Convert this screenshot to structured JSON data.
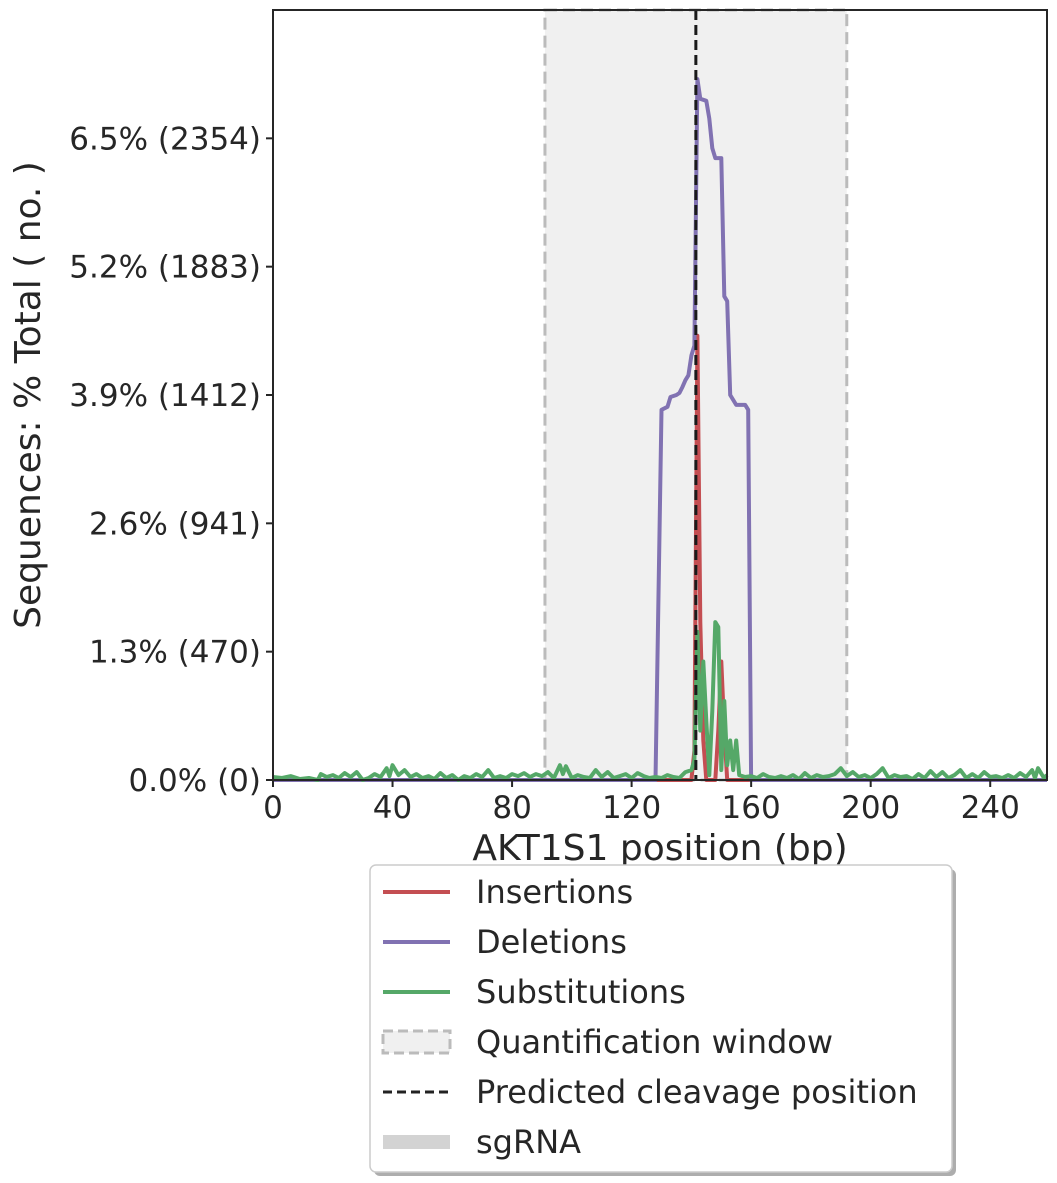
{
  "chart_data": {
    "type": "line",
    "xlabel": "AKT1S1 position (bp)",
    "ylabel": "Sequences: % Total ( no. )",
    "xlim": [
      0,
      259
    ],
    "ylim": [
      0,
      7.8
    ],
    "x_ticks": [
      0,
      40,
      80,
      120,
      160,
      200,
      240
    ],
    "x_tick_labels": [
      "0",
      "40",
      "80",
      "120",
      "160",
      "200",
      "240"
    ],
    "y_ticks": [
      0,
      1.3,
      2.6,
      3.9,
      5.2,
      6.5
    ],
    "y_tick_labels": [
      "0.0% (0)",
      "1.3% (470)",
      "2.6% (941)",
      "3.9% (1412)",
      "5.2% (1883)",
      "6.5% (2354)"
    ],
    "quantification_window": [
      91,
      192
    ],
    "predicted_cleavage_position": 141.5,
    "series": [
      {
        "name": "Insertions",
        "color": "#c44e52",
        "points": [
          [
            0,
            0
          ],
          [
            138,
            0
          ],
          [
            140,
            0
          ],
          [
            141,
            0.3
          ],
          [
            142,
            4.5
          ],
          [
            143,
            1.6
          ],
          [
            144,
            0.4
          ],
          [
            145,
            0
          ],
          [
            148,
            0
          ],
          [
            149,
            0.5
          ],
          [
            150,
            1.2
          ],
          [
            151,
            0.5
          ],
          [
            152,
            0
          ],
          [
            259,
            0
          ]
        ]
      },
      {
        "name": "Deletions",
        "color": "#8172b2",
        "points": [
          [
            0,
            0
          ],
          [
            128,
            0
          ],
          [
            130,
            3.75
          ],
          [
            132,
            3.78
          ],
          [
            133,
            3.88
          ],
          [
            135,
            3.9
          ],
          [
            136,
            3.92
          ],
          [
            137,
            3.98
          ],
          [
            138,
            4.05
          ],
          [
            139,
            4.1
          ],
          [
            140,
            4.3
          ],
          [
            141,
            4.4
          ],
          [
            142,
            7.1
          ],
          [
            143,
            6.9
          ],
          [
            145,
            6.88
          ],
          [
            146,
            6.7
          ],
          [
            147,
            6.4
          ],
          [
            148,
            6.3
          ],
          [
            150,
            6.3
          ],
          [
            151,
            4.9
          ],
          [
            152,
            4.85
          ],
          [
            153,
            3.9
          ],
          [
            155,
            3.8
          ],
          [
            158,
            3.8
          ],
          [
            159,
            3.75
          ],
          [
            160,
            0
          ],
          [
            259,
            0
          ]
        ]
      },
      {
        "name": "Substitutions",
        "color": "#55a868",
        "points": [
          [
            0,
            0.03
          ],
          [
            3,
            0.02
          ],
          [
            6,
            0.04
          ],
          [
            9,
            0.01
          ],
          [
            12,
            0.02
          ],
          [
            15,
            0
          ],
          [
            16,
            0.06
          ],
          [
            18,
            0.03
          ],
          [
            20,
            0.05
          ],
          [
            22,
            0.02
          ],
          [
            24,
            0.07
          ],
          [
            26,
            0.03
          ],
          [
            28,
            0.08
          ],
          [
            30,
            0
          ],
          [
            32,
            0.02
          ],
          [
            34,
            0.06
          ],
          [
            36,
            0.03
          ],
          [
            38,
            0.12
          ],
          [
            39,
            0.04
          ],
          [
            40,
            0.15
          ],
          [
            42,
            0.05
          ],
          [
            44,
            0.1
          ],
          [
            46,
            0.03
          ],
          [
            48,
            0.06
          ],
          [
            50,
            0.02
          ],
          [
            52,
            0.04
          ],
          [
            54,
            0.01
          ],
          [
            56,
            0.07
          ],
          [
            58,
            0.02
          ],
          [
            60,
            0.05
          ],
          [
            62,
            0
          ],
          [
            64,
            0.04
          ],
          [
            66,
            0.02
          ],
          [
            68,
            0.06
          ],
          [
            70,
            0.03
          ],
          [
            72,
            0.1
          ],
          [
            74,
            0.02
          ],
          [
            76,
            0.04
          ],
          [
            78,
            0.02
          ],
          [
            80,
            0.06
          ],
          [
            82,
            0.04
          ],
          [
            84,
            0.07
          ],
          [
            86,
            0.03
          ],
          [
            88,
            0.06
          ],
          [
            90,
            0.04
          ],
          [
            92,
            0.08
          ],
          [
            94,
            0.02
          ],
          [
            96,
            0.15
          ],
          [
            97,
            0.06
          ],
          [
            98,
            0.14
          ],
          [
            100,
            0.02
          ],
          [
            102,
            0.05
          ],
          [
            104,
            0.03
          ],
          [
            106,
            0.02
          ],
          [
            108,
            0.1
          ],
          [
            110,
            0.03
          ],
          [
            112,
            0.08
          ],
          [
            114,
            0.02
          ],
          [
            116,
            0.04
          ],
          [
            118,
            0.06
          ],
          [
            120,
            0.02
          ],
          [
            122,
            0.07
          ],
          [
            124,
            0.04
          ],
          [
            126,
            0.02
          ],
          [
            128,
            0.03
          ],
          [
            130,
            0.02
          ],
          [
            132,
            0.05
          ],
          [
            134,
            0.03
          ],
          [
            136,
            0.02
          ],
          [
            138,
            0.08
          ],
          [
            140,
            0.1
          ],
          [
            141,
            0.2
          ],
          [
            142,
            1.5
          ],
          [
            143,
            0.5
          ],
          [
            144,
            1.2
          ],
          [
            145,
            0.6
          ],
          [
            146,
            0.05
          ],
          [
            147,
            0.7
          ],
          [
            148,
            1.6
          ],
          [
            149,
            1.55
          ],
          [
            150,
            0.1
          ],
          [
            151,
            0.8
          ],
          [
            152,
            0.15
          ],
          [
            153,
            0.4
          ],
          [
            154,
            0.1
          ],
          [
            155,
            0.4
          ],
          [
            156,
            0.05
          ],
          [
            158,
            0.03
          ],
          [
            160,
            0.04
          ],
          [
            162,
            0.02
          ],
          [
            164,
            0.06
          ],
          [
            166,
            0.03
          ],
          [
            168,
            0.02
          ],
          [
            170,
            0.04
          ],
          [
            172,
            0.02
          ],
          [
            174,
            0.05
          ],
          [
            176,
            0.01
          ],
          [
            178,
            0.07
          ],
          [
            180,
            0.02
          ],
          [
            182,
            0.05
          ],
          [
            184,
            0.03
          ],
          [
            186,
            0.04
          ],
          [
            188,
            0.06
          ],
          [
            190,
            0.12
          ],
          [
            192,
            0.04
          ],
          [
            194,
            0.08
          ],
          [
            196,
            0.03
          ],
          [
            198,
            0.05
          ],
          [
            200,
            0.02
          ],
          [
            202,
            0.06
          ],
          [
            204,
            0.12
          ],
          [
            206,
            0.02
          ],
          [
            208,
            0.05
          ],
          [
            210,
            0.03
          ],
          [
            212,
            0.04
          ],
          [
            214,
            0.01
          ],
          [
            216,
            0.06
          ],
          [
            218,
            0.02
          ],
          [
            220,
            0.09
          ],
          [
            222,
            0.03
          ],
          [
            224,
            0.08
          ],
          [
            226,
            0.02
          ],
          [
            228,
            0.05
          ],
          [
            230,
            0.1
          ],
          [
            232,
            0.02
          ],
          [
            234,
            0.06
          ],
          [
            236,
            0.02
          ],
          [
            238,
            0.08
          ],
          [
            240,
            0.03
          ],
          [
            242,
            0.04
          ],
          [
            244,
            0.02
          ],
          [
            246,
            0.05
          ],
          [
            248,
            0.02
          ],
          [
            250,
            0.07
          ],
          [
            252,
            0.03
          ],
          [
            254,
            0.1
          ],
          [
            255,
            0.02
          ],
          [
            256,
            0.12
          ],
          [
            258,
            0.02
          ],
          [
            259,
            0.05
          ]
        ]
      }
    ],
    "legend": {
      "position": "below",
      "entries": [
        {
          "label": "Insertions",
          "style": "line",
          "color": "#c44e52"
        },
        {
          "label": "Deletions",
          "style": "line",
          "color": "#8172b2"
        },
        {
          "label": "Substitutions",
          "style": "line",
          "color": "#55a868"
        },
        {
          "label": "Quantification window",
          "style": "dashed-box",
          "color": "#bbbbbb"
        },
        {
          "label": "Predicted cleavage position",
          "style": "dashed-line",
          "color": "#222222"
        },
        {
          "label": "sgRNA",
          "style": "thick-line",
          "color": "#d3d3d3"
        }
      ]
    }
  }
}
